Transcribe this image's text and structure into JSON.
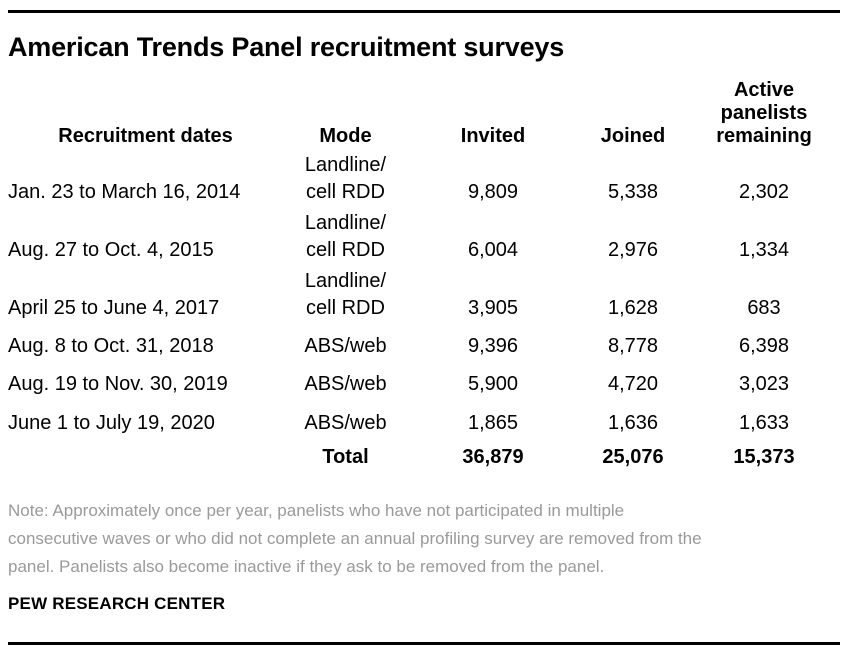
{
  "title": "American Trends Panel recruitment surveys",
  "table": {
    "headers": {
      "dates": "Recruitment dates",
      "mode": "Mode",
      "invited": "Invited",
      "joined": "Joined",
      "active": "Active\npanelists\nremaining"
    },
    "rows": [
      {
        "dates": "Jan. 23 to March 16, 2014",
        "mode": "Landline/\ncell RDD",
        "invited": "9,809",
        "joined": "5,338",
        "active": "2,302"
      },
      {
        "dates": "Aug. 27 to Oct. 4, 2015",
        "mode": "Landline/\ncell RDD",
        "invited": "6,004",
        "joined": "2,976",
        "active": "1,334"
      },
      {
        "dates": "April 25 to June 4, 2017",
        "mode": "Landline/\ncell RDD",
        "invited": "3,905",
        "joined": "1,628",
        "active": "683"
      },
      {
        "dates": "Aug. 8 to Oct. 31, 2018",
        "mode": "ABS/web",
        "invited": "9,396",
        "joined": "8,778",
        "active": "6,398"
      },
      {
        "dates": "Aug. 19 to Nov. 30, 2019",
        "mode": "ABS/web",
        "invited": "5,900",
        "joined": "4,720",
        "active": "3,023"
      },
      {
        "dates": "June 1 to July 19, 2020",
        "mode": "ABS/web",
        "invited": "1,865",
        "joined": "1,636",
        "active": "1,633"
      }
    ],
    "total": {
      "label": "Total",
      "invited": "36,879",
      "joined": "25,076",
      "active": "15,373"
    }
  },
  "note": "Note: Approximately once per year, panelists who have not participated in multiple\nconsecutive waves or who did not complete an annual profiling survey are removed from the\npanel. Panelists also become inactive if they ask to be removed from the panel.",
  "source": "PEW RESEARCH CENTER",
  "colors": {
    "text": "#000000",
    "note_gray": "#9a9a9a",
    "rule": "#000000"
  },
  "chart_data": {
    "type": "table",
    "title": "American Trends Panel recruitment surveys",
    "columns": [
      "Recruitment dates",
      "Mode",
      "Invited",
      "Joined",
      "Active panelists remaining"
    ],
    "rows": [
      [
        "Jan. 23 to March 16, 2014",
        "Landline/cell RDD",
        9809,
        5338,
        2302
      ],
      [
        "Aug. 27 to Oct. 4, 2015",
        "Landline/cell RDD",
        6004,
        2976,
        1334
      ],
      [
        "April 25 to June 4, 2017",
        "Landline/cell RDD",
        3905,
        1628,
        683
      ],
      [
        "Aug. 8 to Oct. 31, 2018",
        "ABS/web",
        9396,
        8778,
        6398
      ],
      [
        "Aug. 19 to Nov. 30, 2019",
        "ABS/web",
        5900,
        4720,
        3023
      ],
      [
        "June 1 to July 19, 2020",
        "ABS/web",
        1865,
        1636,
        1633
      ]
    ],
    "totals": {
      "label": "Total",
      "invited": 36879,
      "joined": 25076,
      "active": 15373
    },
    "note": "Approximately once per year, panelists who have not participated in multiple consecutive waves or who did not complete an annual profiling survey are removed from the panel. Panelists also become inactive if they ask to be removed from the panel.",
    "source": "PEW RESEARCH CENTER"
  }
}
